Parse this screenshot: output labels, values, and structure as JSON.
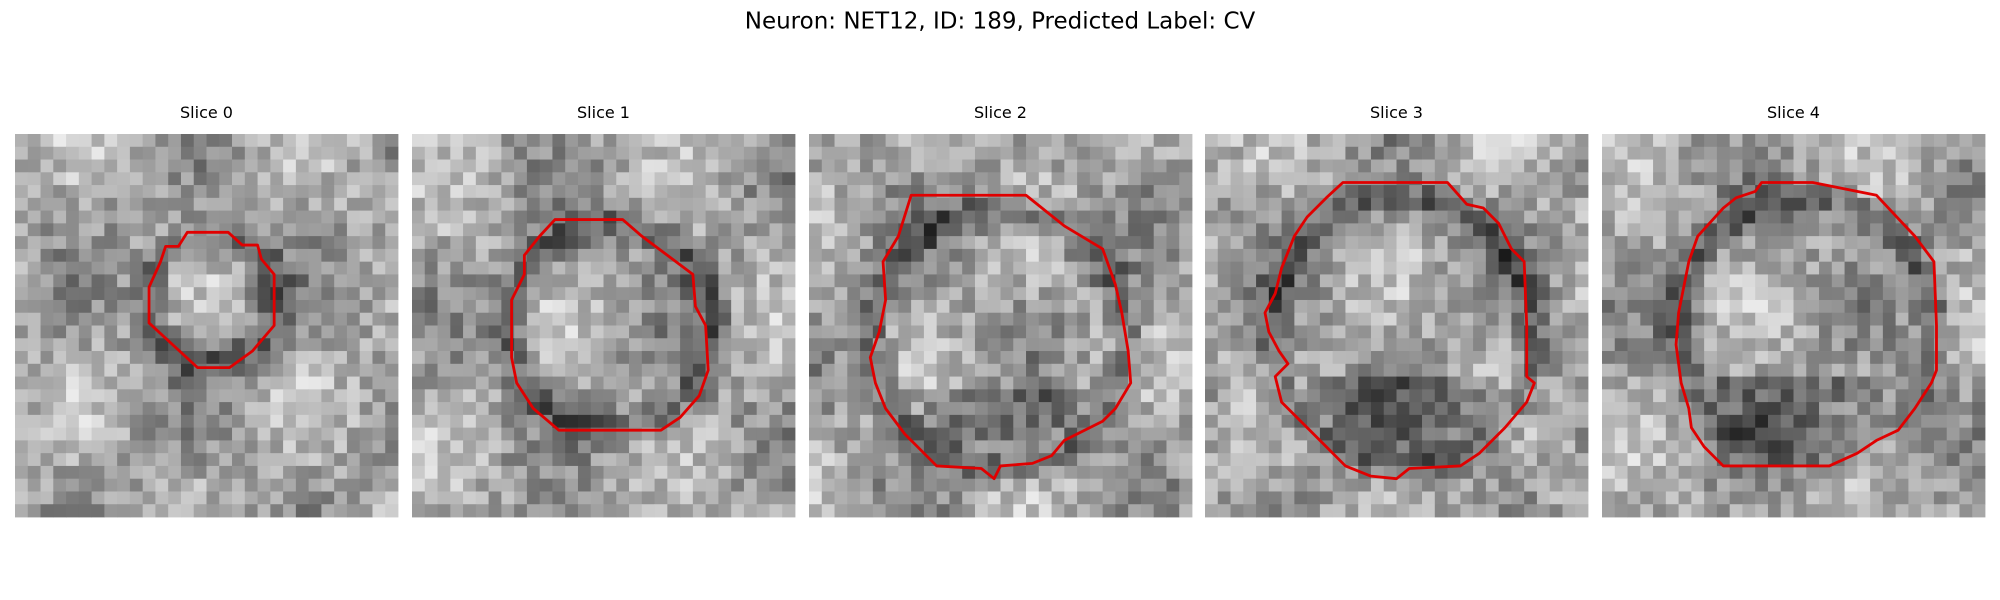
{
  "title": "Neuron: NET12, ID: 189, Predicted Label: CV",
  "panels": [
    {
      "title": "Slice 0"
    },
    {
      "title": "Slice 1"
    },
    {
      "title": "Slice 2"
    },
    {
      "title": "Slice 3"
    },
    {
      "title": "Slice 4"
    }
  ]
}
